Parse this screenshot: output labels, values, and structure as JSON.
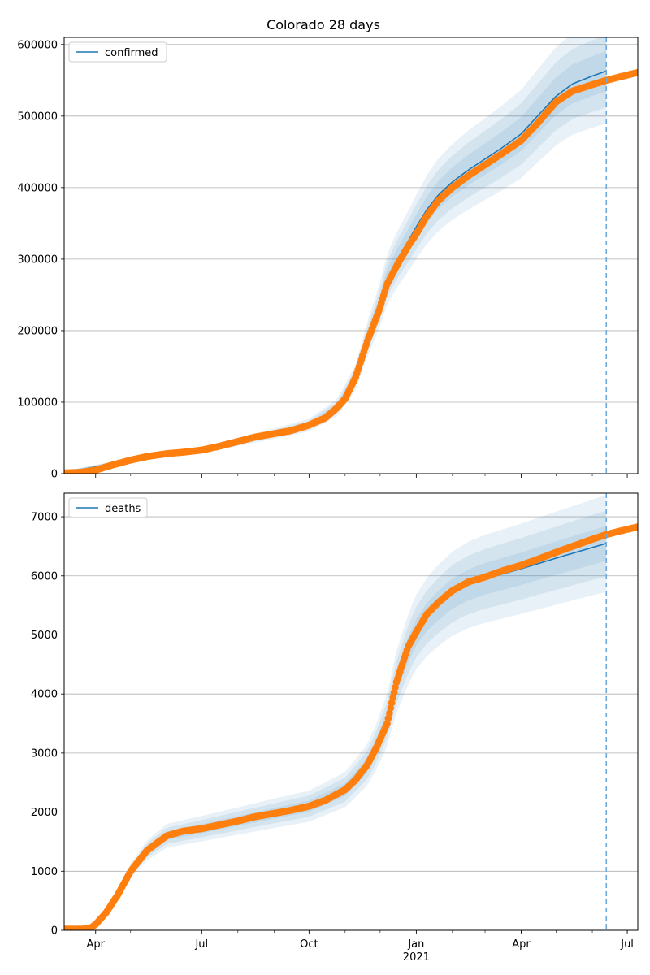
{
  "figure": {
    "title": "Colorado 28 days"
  },
  "x_axis": {
    "ticks": [
      {
        "date": "2020-04-01",
        "label": "Apr",
        "sublabel": ""
      },
      {
        "date": "2020-07-01",
        "label": "Jul",
        "sublabel": ""
      },
      {
        "date": "2020-10-01",
        "label": "Oct",
        "sublabel": ""
      },
      {
        "date": "2021-01-01",
        "label": "Jan",
        "sublabel": "2021"
      },
      {
        "date": "2021-04-01",
        "label": "Apr",
        "sublabel": ""
      },
      {
        "date": "2021-07-01",
        "label": "Jul",
        "sublabel": ""
      }
    ],
    "range": [
      "2020-03-05",
      "2021-07-10"
    ]
  },
  "colors": {
    "forecast_line": "#1f77b4",
    "bands": "#1f77b4",
    "observed": "#ff7f0e",
    "cutoff_line": "#6fa8dc",
    "grid": "#b0b0b0"
  },
  "chart_data": [
    {
      "type": "line",
      "title": "Colorado 28 days",
      "legend": {
        "label": "confirmed",
        "placement": "top-left"
      },
      "forecast_cutoff": "2021-06-13",
      "grid": "horizontal",
      "ylim": [
        0,
        610000
      ],
      "yticks": [
        0,
        100000,
        200000,
        300000,
        400000,
        500000,
        600000
      ],
      "observed": {
        "x": [
          "2020-03-05",
          "2020-03-20",
          "2020-04-01",
          "2020-04-15",
          "2020-05-01",
          "2020-05-15",
          "2020-06-01",
          "2020-06-15",
          "2020-07-01",
          "2020-07-15",
          "2020-08-01",
          "2020-08-15",
          "2020-09-01",
          "2020-09-15",
          "2020-10-01",
          "2020-10-15",
          "2020-10-25",
          "2020-11-01",
          "2020-11-10",
          "2020-11-20",
          "2020-11-30",
          "2020-12-07",
          "2020-12-15",
          "2020-12-25",
          "2021-01-01",
          "2021-01-10",
          "2021-01-20",
          "2021-02-01",
          "2021-02-15",
          "2021-03-01",
          "2021-03-15",
          "2021-04-01",
          "2021-04-15",
          "2021-05-01",
          "2021-05-15",
          "2021-06-01",
          "2021-06-13",
          "2021-06-25",
          "2021-07-10"
        ],
        "y": [
          1000,
          2000,
          5000,
          12000,
          19000,
          24000,
          28000,
          30000,
          33000,
          38000,
          45000,
          51000,
          56000,
          60000,
          68000,
          78000,
          92000,
          105000,
          135000,
          185000,
          228000,
          265000,
          290000,
          318000,
          335000,
          360000,
          382000,
          400000,
          417000,
          432000,
          447000,
          466000,
          490000,
          520000,
          535000,
          544000,
          550000,
          555000,
          561000
        ]
      },
      "forecast": {
        "x": [
          "2020-03-05",
          "2020-05-01",
          "2020-07-01",
          "2020-09-01",
          "2020-10-01",
          "2020-10-25",
          "2020-11-10",
          "2020-11-20",
          "2020-11-30",
          "2020-12-07",
          "2020-12-15",
          "2020-12-25",
          "2021-01-01",
          "2021-01-10",
          "2021-01-20",
          "2021-02-01",
          "2021-02-15",
          "2021-03-01",
          "2021-03-15",
          "2021-04-01",
          "2021-04-15",
          "2021-05-01",
          "2021-05-15",
          "2021-06-01",
          "2021-06-13"
        ],
        "y": [
          1000,
          19000,
          33000,
          56000,
          68000,
          92000,
          135000,
          188000,
          232000,
          272000,
          298000,
          325000,
          345000,
          369000,
          390000,
          408000,
          425000,
          440000,
          455000,
          475000,
          500000,
          528000,
          545000,
          556000,
          563000
        ]
      },
      "band_spread": [
        0.05,
        0.09,
        0.13
      ]
    },
    {
      "type": "line",
      "legend": {
        "label": "deaths",
        "placement": "top-left"
      },
      "forecast_cutoff": "2021-06-13",
      "grid": "horizontal",
      "ylim": [
        0,
        7400
      ],
      "yticks": [
        0,
        1000,
        2000,
        3000,
        4000,
        5000,
        6000,
        7000
      ],
      "observed": {
        "x": [
          "2020-03-05",
          "2020-03-20",
          "2020-03-27",
          "2020-04-01",
          "2020-04-10",
          "2020-04-20",
          "2020-05-01",
          "2020-05-15",
          "2020-06-01",
          "2020-06-15",
          "2020-07-01",
          "2020-07-15",
          "2020-08-01",
          "2020-08-15",
          "2020-09-01",
          "2020-09-15",
          "2020-10-01",
          "2020-10-15",
          "2020-11-01",
          "2020-11-10",
          "2020-11-20",
          "2020-11-28",
          "2020-12-07",
          "2020-12-15",
          "2020-12-25",
          "2021-01-01",
          "2021-01-10",
          "2021-01-20",
          "2021-02-01",
          "2021-02-15",
          "2021-03-01",
          "2021-03-15",
          "2021-04-01",
          "2021-04-15",
          "2021-05-01",
          "2021-05-15",
          "2021-06-01",
          "2021-06-13",
          "2021-06-25",
          "2021-07-10"
        ],
        "y": [
          20,
          20,
          30,
          100,
          300,
          600,
          1000,
          1350,
          1600,
          1680,
          1720,
          1780,
          1850,
          1920,
          1980,
          2030,
          2100,
          2200,
          2380,
          2550,
          2800,
          3100,
          3500,
          4200,
          4800,
          5050,
          5350,
          5550,
          5750,
          5900,
          5980,
          6080,
          6180,
          6280,
          6400,
          6500,
          6620,
          6700,
          6760,
          6830
        ]
      },
      "forecast": {
        "x": [
          "2020-03-05",
          "2020-03-27",
          "2020-04-10",
          "2020-04-20",
          "2020-05-01",
          "2020-05-15",
          "2020-06-01",
          "2020-07-01",
          "2020-08-01",
          "2020-09-01",
          "2020-10-01",
          "2020-11-01",
          "2020-11-20",
          "2020-11-28",
          "2020-12-07",
          "2020-12-15",
          "2020-12-25",
          "2021-01-01",
          "2021-01-10",
          "2021-01-20",
          "2021-02-01",
          "2021-02-15",
          "2021-03-01",
          "2021-04-01",
          "2021-05-01",
          "2021-06-01",
          "2021-06-13"
        ],
        "y": [
          20,
          30,
          300,
          600,
          1000,
          1350,
          1600,
          1720,
          1850,
          1980,
          2100,
          2380,
          2800,
          3120,
          3560,
          4200,
          4750,
          5050,
          5300,
          5500,
          5700,
          5850,
          5950,
          6120,
          6300,
          6480,
          6550
        ]
      },
      "band_spread": [
        0.045,
        0.085,
        0.125
      ]
    }
  ]
}
